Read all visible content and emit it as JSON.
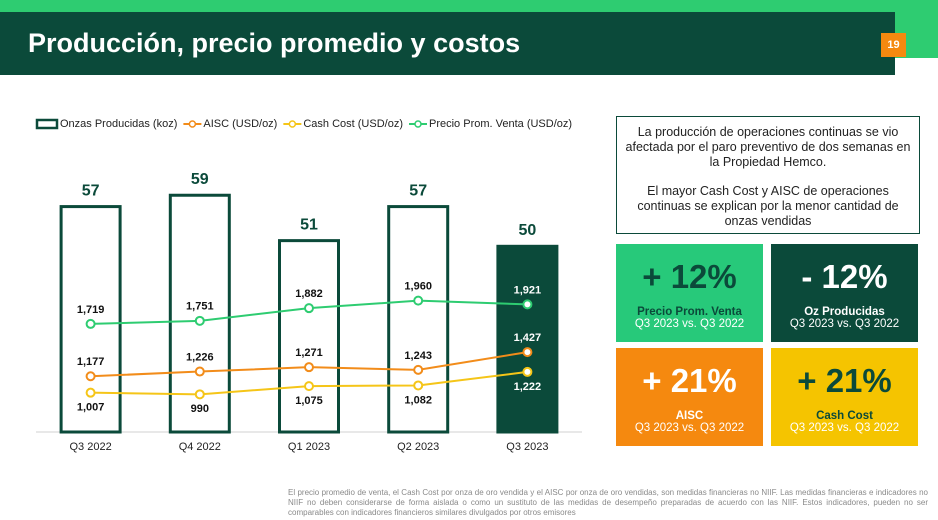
{
  "header": {
    "title": "Producción, precio promedio y costos",
    "page_number": "19"
  },
  "chart_data": {
    "type": "bar",
    "categories": [
      "Q3 2022",
      "Q4 2022",
      "Q1 2023",
      "Q2 2023",
      "Q3 2023"
    ],
    "series": [
      {
        "name": "Onzas Producidas (koz)",
        "type": "bar",
        "color": "#0b4a3a",
        "values": [
          57,
          59,
          51,
          57,
          50
        ],
        "filled": [
          false,
          false,
          false,
          false,
          true
        ]
      },
      {
        "name": "AISC (USD/oz)",
        "type": "line",
        "axis": "y2",
        "color": "#f28c1a",
        "label_position": "above",
        "values": [
          1177,
          1226,
          1271,
          1243,
          1427
        ],
        "value_labels": [
          "1,177",
          "1,226",
          "1,271",
          "1,243",
          "1,427"
        ]
      },
      {
        "name": "Cash Cost (USD/oz)",
        "type": "line",
        "axis": "y2",
        "color": "#f5c518",
        "label_position": "below",
        "values": [
          1007,
          990,
          1075,
          1082,
          1222
        ],
        "value_labels": [
          "1,007",
          "990",
          "1,075",
          "1,082",
          "1,222"
        ]
      },
      {
        "name": "Precio Prom. Venta (USD/oz)",
        "type": "line",
        "axis": "y2",
        "color": "#2ecc71",
        "label_position": "above",
        "values": [
          1719,
          1751,
          1882,
          1960,
          1921
        ],
        "value_labels": [
          "1,719",
          "1,751",
          "1,882",
          "1,960",
          "1,921"
        ]
      }
    ],
    "ylim": [
      17,
      72
    ],
    "y2lim": [
      600,
      3830
    ]
  },
  "notes": {
    "paragraphs": [
      "La producción de operaciones continuas se vio afectada por el paro preventivo de dos semanas en la Propiedad Hemco.",
      "El mayor Cash Cost y AISC de operaciones continuas se explican por la menor cantidad de onzas vendidas"
    ]
  },
  "tiles": [
    {
      "value": "+ 12%",
      "label": "Precio Prom. Venta",
      "sub": "Q3 2023 vs. Q3 2022",
      "color": "#27c97a",
      "text_color": "#0b4a3a"
    },
    {
      "value": "- 12%",
      "label": "Oz Producidas",
      "sub": "Q3 2023 vs. Q3 2022",
      "color": "#0b4a3a",
      "text_color": "#ffffff"
    },
    {
      "value": "+ 21%",
      "label": "AISC",
      "sub": "Q3 2023 vs. Q3 2022",
      "color": "#f5890f",
      "text_color": "#ffffff"
    },
    {
      "value": "+ 21%",
      "label": "Cash Cost",
      "sub": "Q3 2023 vs. Q3 2022",
      "color": "#f5c400",
      "text_color": "#0b4a3a"
    }
  ],
  "footnote": "El precio promedio de venta, el Cash Cost por onza de oro vendida y el AISC por onza de oro vendidas, son medidas financieras no NIIF. Las medidas financieras e indicadores no NIIF no deben considerarse de forma aislada o como un sustituto de las medidas de desempeño preparadas de acuerdo con las NIIF. Estos indicadores, pueden no ser comparables con indicadores financieros similares divulgados por otros emisores"
}
